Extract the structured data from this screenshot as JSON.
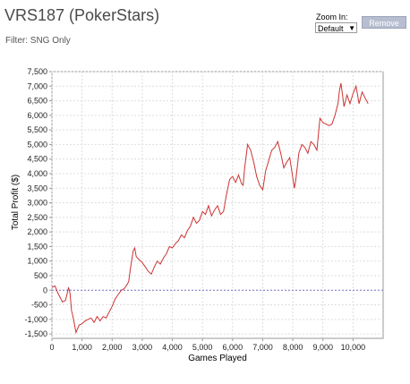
{
  "header": {
    "title": "VRS187 (PokerStars)",
    "filter": "Filter: SNG Only"
  },
  "zoom": {
    "label": "Zoom In:",
    "selected": "Default",
    "remove_label": "Remove"
  },
  "colors": {
    "series": "#cc3333",
    "zero_line": "#7777cc",
    "grid": "#dddddd",
    "axis": "#999999"
  },
  "chart_data": {
    "type": "line",
    "title": "",
    "xlabel": "Games Played",
    "ylabel": "Total Profit ($)",
    "xlim": [
      0,
      11000
    ],
    "ylim": [
      -1650,
      7500
    ],
    "x_ticks": [
      "0",
      "1,000",
      "2,000",
      "3,000",
      "4,000",
      "5,000",
      "6,000",
      "7,000",
      "8,000",
      "9,000",
      "10,000"
    ],
    "x_tick_values": [
      0,
      1000,
      2000,
      3000,
      4000,
      5000,
      6000,
      7000,
      8000,
      9000,
      10000
    ],
    "y_ticks": [
      "7,500",
      "7,000",
      "6,500",
      "6,000",
      "5,500",
      "5,000",
      "4,500",
      "4,000",
      "3,500",
      "3,000",
      "2,500",
      "2,000",
      "1,500",
      "1,000",
      "500",
      "0",
      "-500",
      "-1,000",
      "-1,500"
    ],
    "y_tick_values": [
      7500,
      7000,
      6500,
      6000,
      5500,
      5000,
      4500,
      4000,
      3500,
      3000,
      2500,
      2000,
      1500,
      1000,
      500,
      0,
      -500,
      -1000,
      -1500
    ],
    "grid": true,
    "reference_line": 0,
    "series": [
      {
        "x": [
          0,
          100,
          200,
          350,
          450,
          500,
          550,
          600,
          650,
          700,
          800,
          900,
          1000,
          1100,
          1200,
          1300,
          1400,
          1500,
          1600,
          1700,
          1800,
          1900,
          2000,
          2100,
          2200,
          2300,
          2400,
          2500,
          2550,
          2600,
          2700,
          2750,
          2800,
          2900,
          3000,
          3100,
          3200,
          3300,
          3400,
          3500,
          3600,
          3700,
          3800,
          3900,
          4000,
          4100,
          4200,
          4300,
          4400,
          4500,
          4600,
          4700,
          4800,
          4900,
          5000,
          5100,
          5200,
          5300,
          5400,
          5500,
          5600,
          5700,
          5800,
          5900,
          6000,
          6100,
          6200,
          6300,
          6350,
          6400,
          6500,
          6600,
          6700,
          6800,
          6900,
          7000,
          7100,
          7200,
          7300,
          7400,
          7500,
          7600,
          7700,
          7800,
          7900,
          8000,
          8050,
          8100,
          8200,
          8300,
          8400,
          8500,
          8600,
          8700,
          8800,
          8900,
          9000,
          9100,
          9200,
          9300,
          9400,
          9500,
          9550,
          9600,
          9700,
          9800,
          9850,
          9900,
          10000,
          10100,
          10150,
          10200,
          10300,
          10400,
          10500
        ],
        "values": [
          100,
          150,
          -100,
          -400,
          -350,
          -150,
          100,
          -100,
          -700,
          -900,
          -1450,
          -1200,
          -1150,
          -1050,
          -1000,
          -950,
          -1100,
          -900,
          -1050,
          -900,
          -950,
          -750,
          -550,
          -300,
          -150,
          0,
          50,
          200,
          300,
          700,
          1350,
          1450,
          1150,
          1050,
          950,
          800,
          650,
          550,
          800,
          1000,
          900,
          1100,
          1250,
          1500,
          1450,
          1600,
          1700,
          1900,
          1800,
          2050,
          2200,
          2500,
          2300,
          2400,
          2700,
          2600,
          2900,
          2550,
          2750,
          2900,
          2600,
          2700,
          3300,
          3800,
          3900,
          3700,
          3950,
          3650,
          3600,
          4200,
          5000,
          4800,
          4400,
          3900,
          3600,
          3450,
          4100,
          4450,
          4800,
          4900,
          5100,
          4700,
          4200,
          4400,
          4550,
          3850,
          3500,
          3800,
          4700,
          5000,
          4900,
          4700,
          5100,
          5000,
          4800,
          5900,
          5750,
          5700,
          5650,
          5700,
          6000,
          6400,
          6850,
          7100,
          6300,
          6700,
          6550,
          6400,
          6750,
          7000,
          6700,
          6400,
          6800,
          6600,
          6400
        ]
      }
    ]
  }
}
